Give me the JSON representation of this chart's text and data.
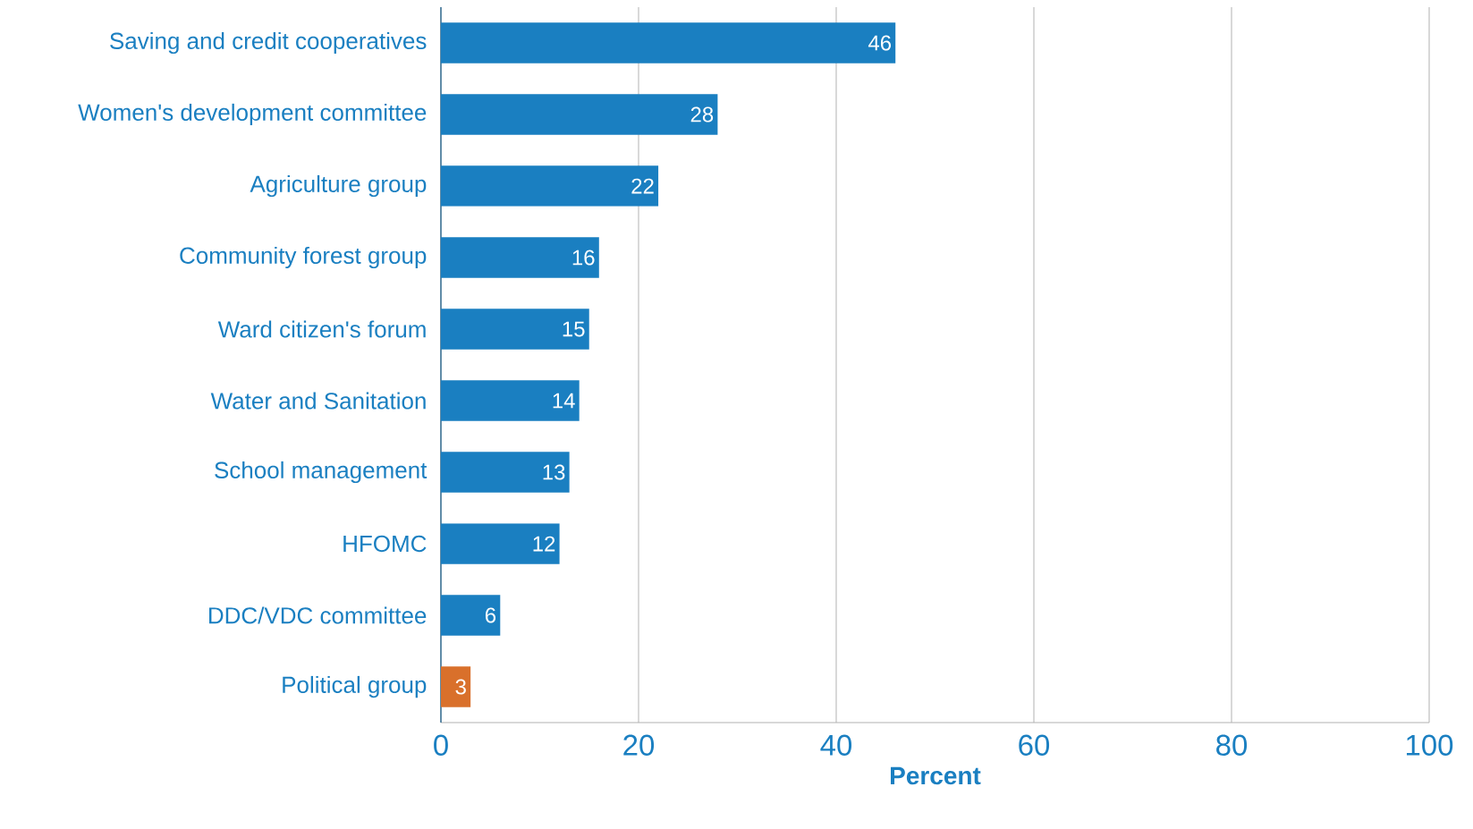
{
  "chart_data": {
    "type": "bar",
    "orientation": "horizontal",
    "xlabel": "**Percent**",
    "categories": [
      "Saving and credit cooperatives",
      "Women's development committee",
      "Agriculture group",
      "Community forest group",
      "Ward citizen's forum",
      "Water and Sanitation",
      "School management",
      "HFOMC",
      "DDC/VDC committee",
      "Political group"
    ],
    "values": [
      46,
      28,
      22,
      16,
      15,
      14,
      13,
      12,
      6,
      3
    ],
    "colors": [
      "#1a7fc1",
      "#1a7fc1",
      "#1a7fc1",
      "#1a7fc1",
      "#1a7fc1",
      "#1a7fc1",
      "#1a7fc1",
      "#1a7fc1",
      "#1a7fc1",
      "#d9702b"
    ],
    "xlim": [
      0,
      100
    ],
    "xticks": [
      0,
      20,
      40,
      60,
      80,
      100
    ],
    "grid": "x",
    "data_labels": true
  }
}
